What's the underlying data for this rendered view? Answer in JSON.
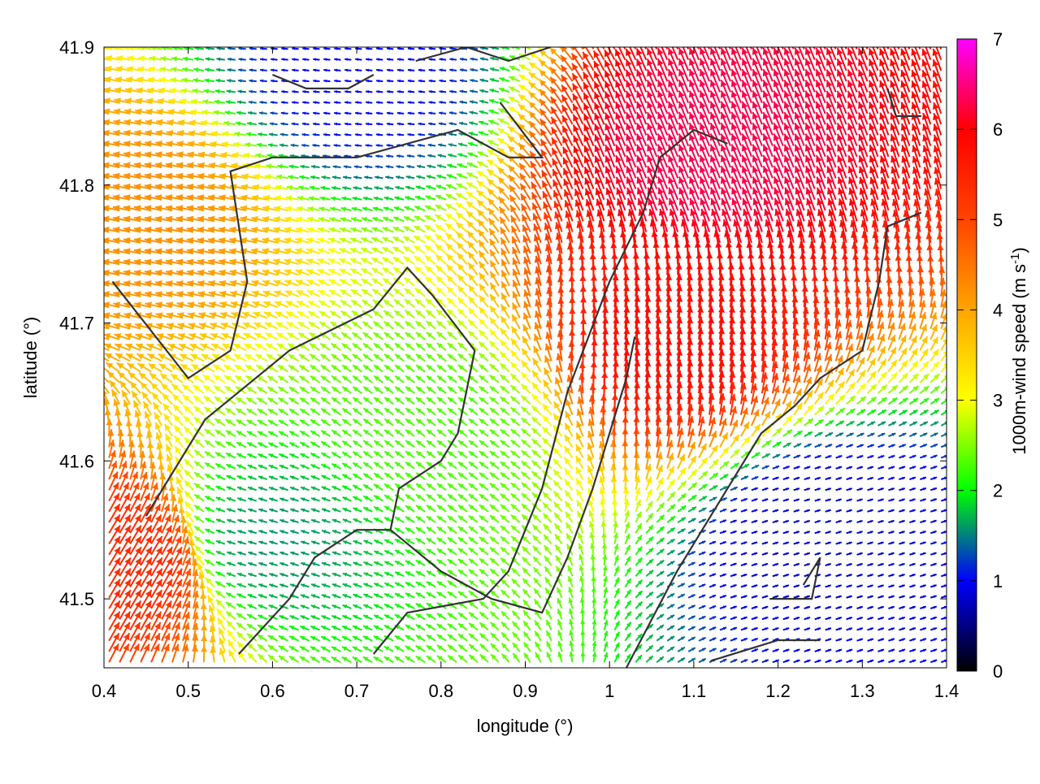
{
  "chart_data": {
    "type": "vector-field",
    "xlabel": "longitude (°)",
    "ylabel": "latitude (°)",
    "xlim": [
      0.4,
      1.4
    ],
    "ylim": [
      41.45,
      41.9
    ],
    "x_ticks": [
      "0.4",
      "0.5",
      "0.6",
      "0.7",
      "0.8",
      "0.9",
      "1",
      "1.1",
      "1.2",
      "1.3",
      "1.4"
    ],
    "x_tick_values": [
      0.4,
      0.5,
      0.6,
      0.7,
      0.8,
      0.9,
      1.0,
      1.1,
      1.2,
      1.3,
      1.4
    ],
    "y_ticks": [
      "41.5",
      "41.6",
      "41.7",
      "41.8",
      "41.9"
    ],
    "y_tick_values": [
      41.5,
      41.6,
      41.7,
      41.8,
      41.9
    ],
    "colorbar": {
      "label": "1000m-wind speed (m s",
      "label_sup": "-1",
      "label_close": ")",
      "range": [
        0,
        7
      ],
      "ticks": [
        "0",
        "1",
        "2",
        "3",
        "4",
        "5",
        "6",
        "7"
      ],
      "tick_values": [
        0,
        1,
        2,
        3,
        4,
        5,
        6,
        7
      ],
      "palette": [
        "#000000",
        "#0000ff",
        "#00ff00",
        "#ffff00",
        "#ffa500",
        "#ff0000",
        "#ff00ff"
      ]
    },
    "grid": false,
    "contours": [
      [
        [
          0.41,
          41.73
        ],
        [
          0.5,
          41.66
        ],
        [
          0.55,
          41.68
        ],
        [
          0.57,
          41.73
        ],
        [
          0.55,
          41.81
        ],
        [
          0.6,
          41.82
        ],
        [
          0.7,
          41.82
        ],
        [
          0.82,
          41.84
        ],
        [
          0.88,
          41.82
        ],
        [
          0.92,
          41.82
        ],
        [
          0.87,
          41.86
        ]
      ],
      [
        [
          0.45,
          41.56
        ],
        [
          0.52,
          41.63
        ],
        [
          0.62,
          41.68
        ],
        [
          0.72,
          41.71
        ],
        [
          0.76,
          41.74
        ],
        [
          0.79,
          41.72
        ],
        [
          0.84,
          41.68
        ],
        [
          0.82,
          41.62
        ],
        [
          0.8,
          41.6
        ],
        [
          0.75,
          41.58
        ],
        [
          0.74,
          41.55
        ],
        [
          0.8,
          41.52
        ],
        [
          0.86,
          41.5
        ],
        [
          0.92,
          41.49
        ],
        [
          0.95,
          41.53
        ],
        [
          0.98,
          41.58
        ],
        [
          1.02,
          41.66
        ],
        [
          1.03,
          41.69
        ]
      ],
      [
        [
          0.72,
          41.46
        ],
        [
          0.76,
          41.49
        ],
        [
          0.85,
          41.5
        ],
        [
          0.88,
          41.52
        ],
        [
          0.92,
          41.58
        ],
        [
          0.95,
          41.65
        ],
        [
          1.0,
          41.73
        ],
        [
          1.04,
          41.78
        ],
        [
          1.06,
          41.82
        ],
        [
          1.1,
          41.84
        ],
        [
          1.14,
          41.83
        ]
      ],
      [
        [
          1.02,
          41.45
        ],
        [
          1.08,
          41.52
        ],
        [
          1.13,
          41.57
        ],
        [
          1.18,
          41.62
        ],
        [
          1.22,
          41.64
        ],
        [
          1.25,
          41.66
        ],
        [
          1.3,
          41.68
        ],
        [
          1.32,
          41.73
        ],
        [
          1.33,
          41.77
        ],
        [
          1.37,
          41.78
        ]
      ],
      [
        [
          0.56,
          41.46
        ],
        [
          0.62,
          41.5
        ],
        [
          0.65,
          41.53
        ],
        [
          0.7,
          41.55
        ],
        [
          0.74,
          41.55
        ]
      ],
      [
        [
          1.19,
          41.5
        ],
        [
          1.24,
          41.5
        ],
        [
          1.25,
          41.53
        ],
        [
          1.23,
          41.51
        ]
      ],
      [
        [
          1.12,
          41.455
        ],
        [
          1.2,
          41.47
        ],
        [
          1.25,
          41.47
        ]
      ],
      [
        [
          1.33,
          41.87
        ],
        [
          1.34,
          41.85
        ],
        [
          1.37,
          41.85
        ]
      ],
      [
        [
          0.6,
          41.88
        ],
        [
          0.64,
          41.87
        ],
        [
          0.69,
          41.87
        ],
        [
          0.72,
          41.88
        ]
      ],
      [
        [
          0.77,
          41.89
        ],
        [
          0.83,
          41.9
        ],
        [
          0.88,
          41.89
        ],
        [
          0.93,
          41.9
        ]
      ]
    ],
    "vector_field": {
      "description_free": true,
      "hotspots": [
        {
          "lon": 1.08,
          "lat": 41.68,
          "speed": 5.8,
          "dir": [
            0.1,
            1.0
          ]
        },
        {
          "lon": 1.12,
          "lat": 41.82,
          "speed": 6.3,
          "dir": [
            -0.4,
            1.0
          ]
        },
        {
          "lon": 0.42,
          "lat": 41.52,
          "speed": 5.4,
          "dir": [
            0.6,
            1.0
          ]
        },
        {
          "lon": 1.25,
          "lat": 41.55,
          "speed": 0.8,
          "dir": [
            1.0,
            0.3
          ]
        },
        {
          "lon": 0.6,
          "lat": 41.54,
          "speed": 1.6,
          "dir": [
            -1.0,
            0.3
          ]
        },
        {
          "lon": 0.7,
          "lat": 41.88,
          "speed": 1.0,
          "dir": [
            -1.0,
            0.1
          ]
        },
        {
          "lon": 0.8,
          "lat": 41.62,
          "speed": 2.3,
          "dir": [
            -0.8,
            0.6
          ]
        },
        {
          "lon": 0.45,
          "lat": 41.78,
          "speed": 4.2,
          "dir": [
            -1.0,
            0.2
          ]
        }
      ]
    }
  }
}
